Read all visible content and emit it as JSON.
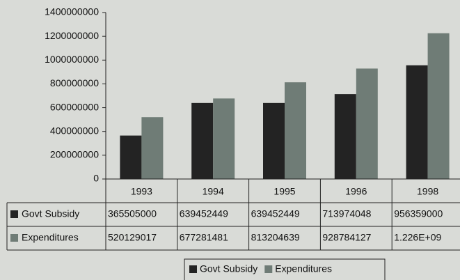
{
  "chart_data": {
    "type": "bar",
    "categories": [
      "1993",
      "1994",
      "1995",
      "1996",
      "1998"
    ],
    "series": [
      {
        "name": "Govt Subsidy",
        "color": "#232323",
        "values": [
          365505000,
          639452449,
          639452449,
          713974048,
          956359000
        ]
      },
      {
        "name": "Expenditures",
        "color": "#6f7c76",
        "values": [
          520129017,
          677281481,
          813204639,
          928784127,
          1226000000
        ],
        "value_labels": [
          "520129017",
          "677281481",
          "813204639",
          "928784127",
          "1.226E+09"
        ]
      }
    ],
    "ylim": [
      0,
      1400000000
    ],
    "yticks": [
      0,
      200000000,
      400000000,
      600000000,
      800000000,
      1000000000,
      1200000000,
      1400000000
    ],
    "grid": false,
    "legend": "bottom"
  }
}
